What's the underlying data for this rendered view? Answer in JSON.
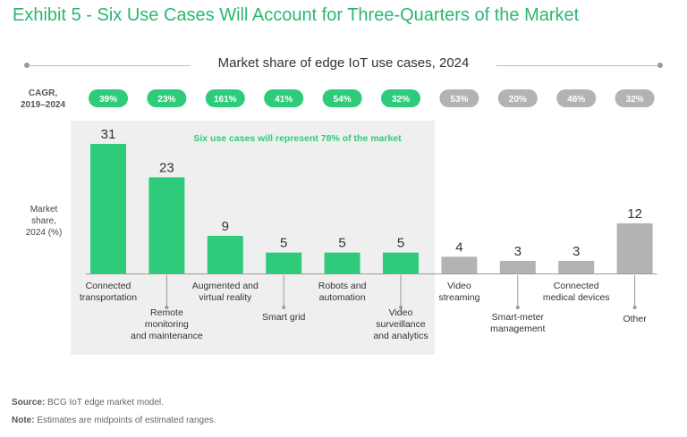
{
  "title": "Exhibit 5 - Six Use Cases Will Account for Three-Quarters of the Market",
  "chart_data": {
    "type": "bar",
    "title": "Market share of edge IoT use cases, 2024",
    "ylabel": "Market share, 2024 (%)",
    "cagr_label": "CAGR, 2019–2024",
    "highlight_text": "Six use cases will represent 78% of the market",
    "highlight_count": 6,
    "categories": [
      "Connected transportation",
      "Remote monitoring and maintenance",
      "Augmented and virtual reality",
      "Smart grid",
      "Robots and automation",
      "Video surveillance and analytics",
      "Video streaming",
      "Smart-meter management",
      "Connected medical devices",
      "Other"
    ],
    "values": [
      31,
      23,
      9,
      5,
      5,
      5,
      4,
      3,
      3,
      12
    ],
    "value_labels": [
      "31",
      "23",
      "9",
      "5",
      "5",
      "5",
      "4",
      "3",
      "3",
      "12"
    ],
    "cagr": [
      "39%",
      "23%",
      "161%",
      "41%",
      "54%",
      "32%",
      "53%",
      "20%",
      "46%",
      "32%"
    ],
    "ylim": [
      0,
      31
    ],
    "colors": {
      "highlight": "#2ecc7a",
      "other": "#b3b3b3",
      "panel": "#efefef",
      "title": "#2bb673"
    }
  },
  "footer": {
    "source_label": "Source:",
    "source_text": "BCG IoT edge market model.",
    "note_label": "Note:",
    "note_text": "Estimates are midpoints of estimated ranges."
  }
}
